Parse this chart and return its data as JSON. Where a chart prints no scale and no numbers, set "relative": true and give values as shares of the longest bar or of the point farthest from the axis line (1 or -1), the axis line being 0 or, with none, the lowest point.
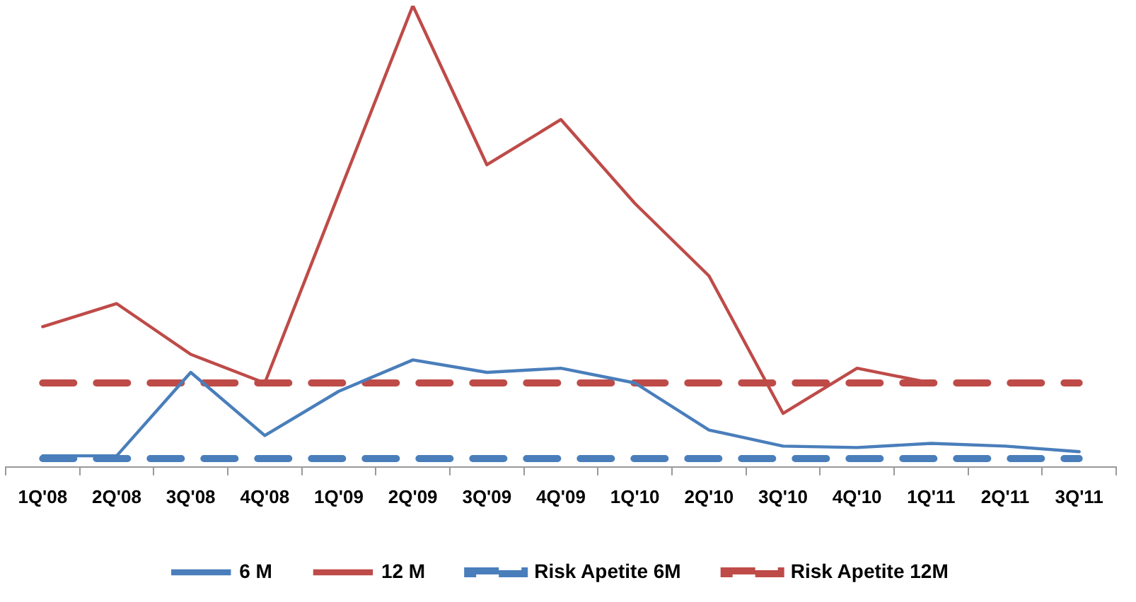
{
  "chart_data": {
    "type": "line",
    "relative": true,
    "legend": "bottom",
    "grid": false,
    "marker": "none",
    "categories": [
      "1Q'08",
      "2Q'08",
      "3Q'08",
      "4Q'08",
      "1Q'09",
      "2Q'09",
      "3Q'09",
      "4Q'09",
      "1Q'10",
      "2Q'10",
      "3Q'10",
      "4Q'10",
      "1Q'11",
      "2Q'11",
      "3Q'11"
    ],
    "series": [
      {
        "name": "6 M",
        "color": "#4a7ebb",
        "line_style": "solid",
        "values": [
          0.024,
          0.024,
          0.205,
          0.068,
          0.164,
          0.232,
          0.205,
          0.214,
          0.182,
          0.08,
          0.045,
          0.042,
          0.051,
          0.045,
          0.033
        ]
      },
      {
        "name": "12 M",
        "color": "#be4b48",
        "line_style": "solid",
        "values": [
          0.304,
          0.354,
          0.244,
          0.182,
          0.592,
          1,
          0.655,
          0.753,
          0.571,
          0.414,
          0.116,
          0.214,
          0.182,
          null,
          null
        ]
      },
      {
        "name": "Risk Apetite 6M",
        "color": "#4a7ebb",
        "line_style": "dashed",
        "values": [
          0.018,
          0.018,
          0.018,
          0.018,
          0.018,
          0.018,
          0.018,
          0.018,
          0.018,
          0.018,
          0.018,
          0.018,
          0.018,
          0.018,
          0.018
        ]
      },
      {
        "name": "Risk Apetite 12M",
        "color": "#be4b48",
        "line_style": "dashed",
        "values": [
          0.182,
          0.182,
          0.182,
          0.182,
          0.182,
          0.182,
          0.182,
          0.182,
          0.182,
          0.182,
          0.182,
          0.182,
          0.182,
          0.182,
          0.182
        ]
      }
    ]
  }
}
